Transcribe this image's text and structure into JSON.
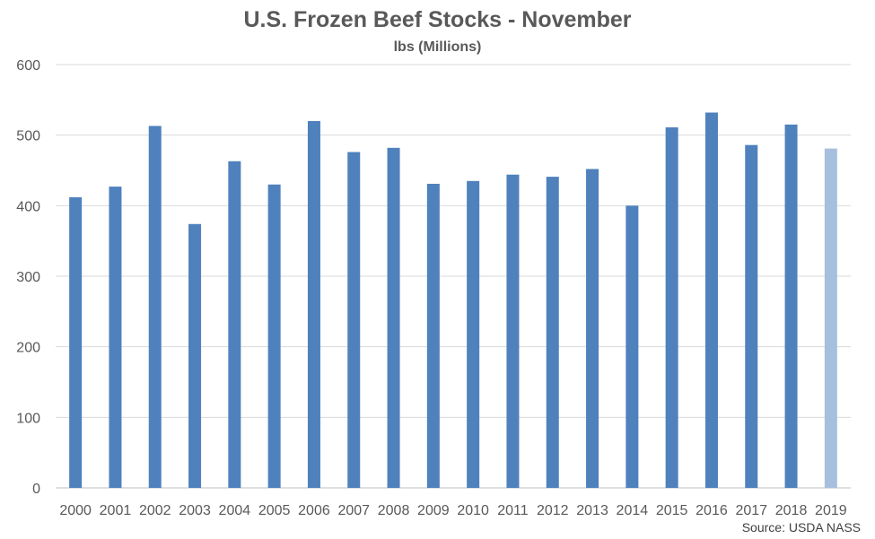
{
  "chart_data": {
    "type": "bar",
    "title": "U.S. Frozen Beef Stocks - November",
    "subtitle": "lbs (Millions)",
    "categories": [
      "2000",
      "2001",
      "2002",
      "2003",
      "2004",
      "2005",
      "2006",
      "2007",
      "2008",
      "2009",
      "2010",
      "2011",
      "2012",
      "2013",
      "2014",
      "2015",
      "2016",
      "2017",
      "2018",
      "2019"
    ],
    "values": [
      412,
      427,
      513,
      374,
      463,
      430,
      520,
      476,
      482,
      431,
      435,
      444,
      441,
      452,
      400,
      511,
      532,
      486,
      515,
      481
    ],
    "ylim": [
      0,
      600
    ],
    "yticks": [
      0,
      100,
      200,
      300,
      400,
      500,
      600
    ],
    "grid": true,
    "colors": {
      "bar": "#4f81bd",
      "highlight_bar": "#a7bfde",
      "grid": "#d9d9d9",
      "axis_text": "#595959"
    },
    "highlight_index": 19,
    "source": "Source: USDA NASS"
  }
}
